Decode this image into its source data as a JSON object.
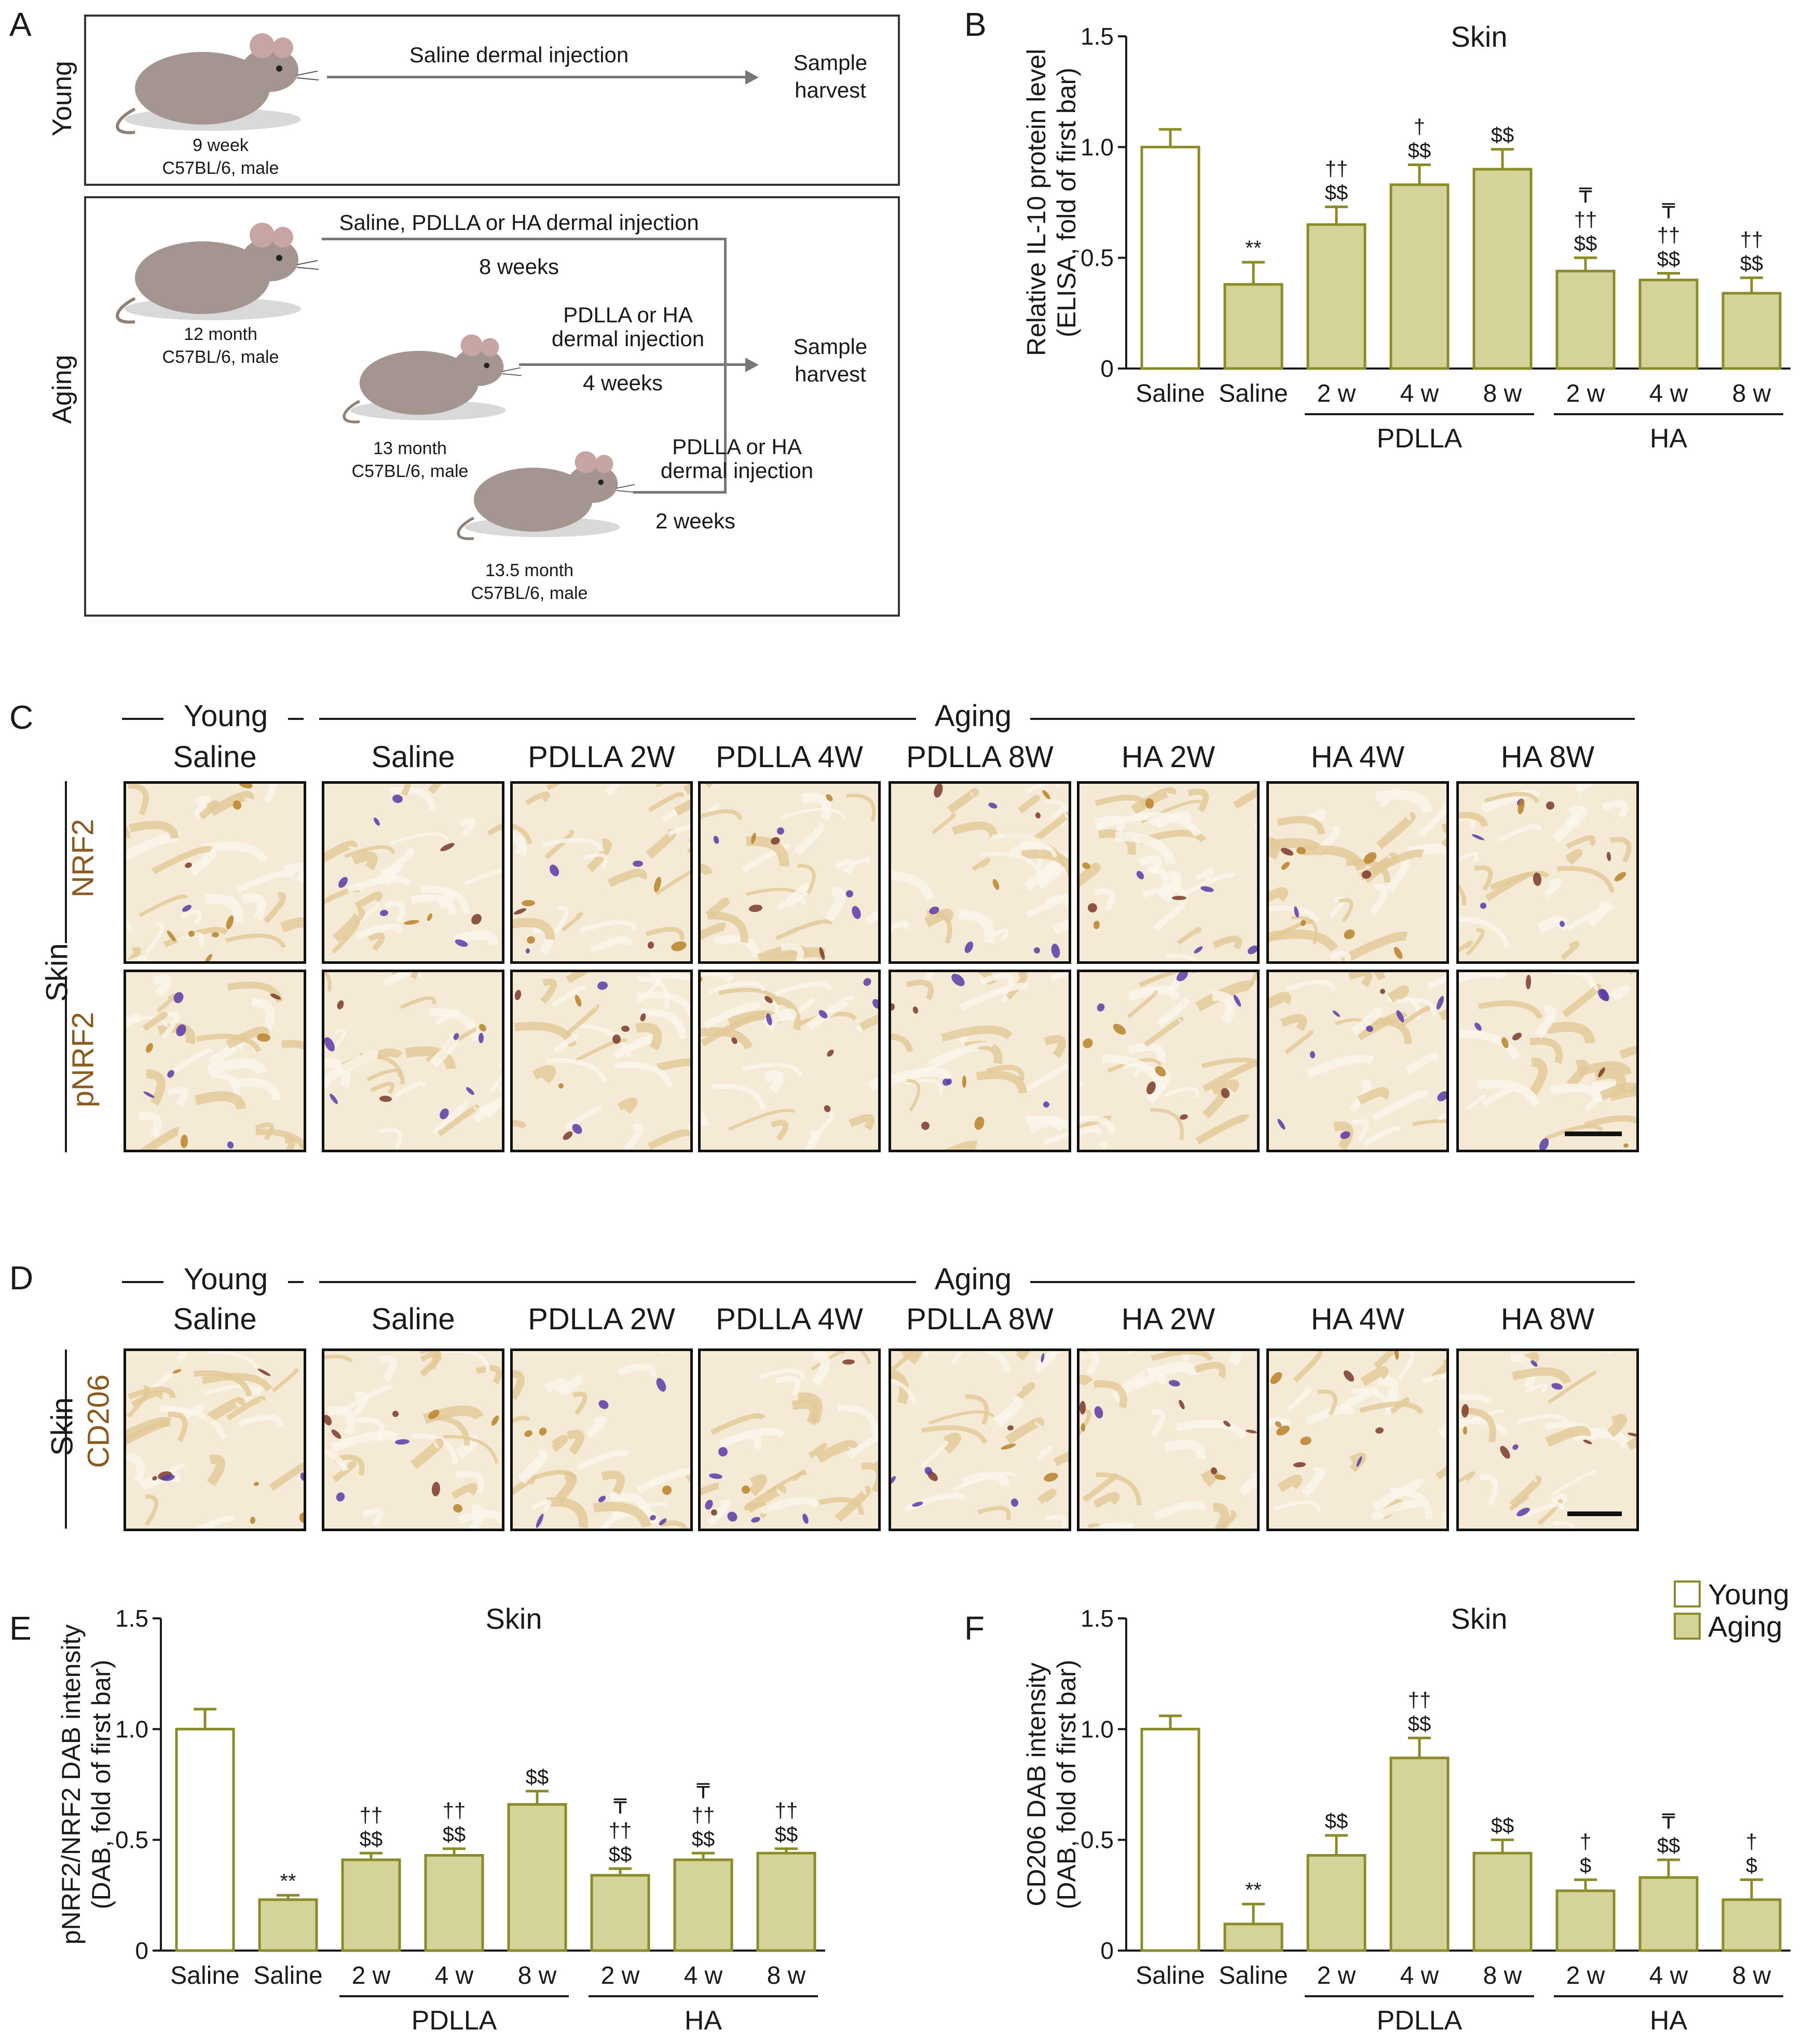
{
  "panel_letters": {
    "a": "A",
    "b": "B",
    "c": "C",
    "d": "D",
    "e": "E",
    "f": "F"
  },
  "schematic": {
    "young_label": "Young",
    "aging_label": "Aging",
    "young_mouse": {
      "age": "9 week",
      "strain": "C57BL/6, male"
    },
    "young_arrow": "Saline dermal injection",
    "sample_harvest_1": "Sample\nharvest",
    "sample_harvest_2": "Sample\nharvest",
    "aging_mouse_1": {
      "age": "12 month",
      "strain": "C57BL/6, male"
    },
    "aging_arrow_1": "Saline, PDLLA or HA dermal injection",
    "aging_weeks_1": "8 weeks",
    "aging_mouse_2": {
      "age": "13 month",
      "strain": "C57BL/6, male"
    },
    "aging_arrow_2": "PDLLA or HA\ndermal injection",
    "aging_weeks_2": "4 weeks",
    "aging_mouse_3": {
      "age": "13.5 month",
      "strain": "C57BL/6, male"
    },
    "aging_arrow_3": "PDLLA or HA\ndermal injection",
    "aging_weeks_3": "2 weeks"
  },
  "colors": {
    "young_fill": "#ffffff",
    "aging_fill": "#d4d49a",
    "bar_stroke": "#8b8b2a",
    "text": "#1a1a1a",
    "brown": "#8a5a20"
  },
  "micro": {
    "young": "Young",
    "aging": "Aging",
    "columns": [
      "Saline",
      "Saline",
      "PDLLA 2W",
      "PDLLA 4W",
      "PDLLA 8W",
      "HA 2W",
      "HA 4W",
      "HA 8W"
    ],
    "skin": "Skin",
    "rows_c": [
      "NRF2",
      "pNRF2"
    ],
    "rows_d": [
      "CD206"
    ]
  },
  "legend": {
    "young": "Young",
    "aging": "Aging"
  },
  "chart_data": [
    {
      "panel": "B",
      "type": "bar",
      "title": "Skin",
      "ylabel": "Relative IL-10 protein level\n(ELISA, fold of first bar)",
      "ylim": [
        0,
        1.5
      ],
      "yticks": [
        "0",
        "0.5",
        "1.0",
        "1.5"
      ],
      "categories": [
        "Saline",
        "Saline",
        "2 w",
        "4 w",
        "8 w",
        "2 w",
        "4 w",
        "8 w"
      ],
      "groups": [
        {
          "label": "PDLLA",
          "from": 2,
          "to": 4
        },
        {
          "label": "HA",
          "from": 5,
          "to": 7
        }
      ],
      "values": [
        1.0,
        0.38,
        0.65,
        0.83,
        0.9,
        0.44,
        0.4,
        0.34
      ],
      "errors": [
        0.08,
        0.1,
        0.08,
        0.09,
        0.09,
        0.06,
        0.03,
        0.07
      ],
      "fill": [
        "young",
        "aging",
        "aging",
        "aging",
        "aging",
        "aging",
        "aging",
        "aging"
      ],
      "annotations": [
        [],
        [
          "**"
        ],
        [
          "††",
          "$$"
        ],
        [
          "†",
          "$$"
        ],
        [
          "$$"
        ],
        [
          "₸",
          "††",
          "$$"
        ],
        [
          "₸",
          "††",
          "$$"
        ],
        [
          "††",
          "$$"
        ]
      ]
    },
    {
      "panel": "E",
      "type": "bar",
      "title": "Skin",
      "ylabel": "pNRF2/NRF2 DAB intensity\n(DAB, fold of first bar)",
      "ylim": [
        0,
        1.5
      ],
      "yticks": [
        "0",
        "0.5",
        "1.0",
        "1.5"
      ],
      "categories": [
        "Saline",
        "Saline",
        "2 w",
        "4 w",
        "8 w",
        "2 w",
        "4 w",
        "8 w"
      ],
      "groups": [
        {
          "label": "PDLLA",
          "from": 2,
          "to": 4
        },
        {
          "label": "HA",
          "from": 5,
          "to": 7
        }
      ],
      "values": [
        1.0,
        0.23,
        0.41,
        0.43,
        0.66,
        0.34,
        0.41,
        0.44
      ],
      "errors": [
        0.09,
        0.02,
        0.03,
        0.03,
        0.06,
        0.03,
        0.03,
        0.02
      ],
      "fill": [
        "young",
        "aging",
        "aging",
        "aging",
        "aging",
        "aging",
        "aging",
        "aging"
      ],
      "annotations": [
        [],
        [
          "**"
        ],
        [
          "††",
          "$$"
        ],
        [
          "††",
          "$$"
        ],
        [
          "$$"
        ],
        [
          "₸",
          "††",
          "$$"
        ],
        [
          "₸",
          "††",
          "$$"
        ],
        [
          "††",
          "$$"
        ]
      ]
    },
    {
      "panel": "F",
      "type": "bar",
      "title": "Skin",
      "ylabel": "CD206 DAB intensity\n(DAB, fold of first bar)",
      "ylim": [
        0,
        1.5
      ],
      "yticks": [
        "0",
        "0.5",
        "1.0",
        "1.5"
      ],
      "categories": [
        "Saline",
        "Saline",
        "2 w",
        "4 w",
        "8 w",
        "2 w",
        "4 w",
        "8 w"
      ],
      "groups": [
        {
          "label": "PDLLA",
          "from": 2,
          "to": 4
        },
        {
          "label": "HA",
          "from": 5,
          "to": 7
        }
      ],
      "values": [
        1.0,
        0.12,
        0.43,
        0.87,
        0.44,
        0.27,
        0.33,
        0.23
      ],
      "errors": [
        0.06,
        0.09,
        0.09,
        0.09,
        0.06,
        0.05,
        0.08,
        0.09
      ],
      "fill": [
        "young",
        "aging",
        "aging",
        "aging",
        "aging",
        "aging",
        "aging",
        "aging"
      ],
      "annotations": [
        [],
        [
          "**"
        ],
        [
          "$$"
        ],
        [
          "††",
          "$$"
        ],
        [
          "$$"
        ],
        [
          "†",
          "$"
        ],
        [
          "₸",
          "$$"
        ],
        [
          "†",
          "$"
        ]
      ]
    }
  ]
}
